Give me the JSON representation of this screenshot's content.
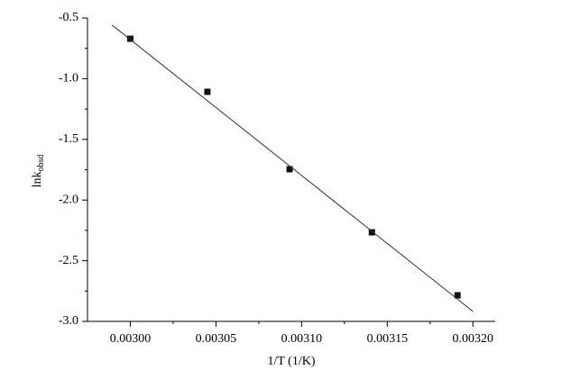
{
  "chart_data": {
    "type": "scatter",
    "xlabel": "1/T (1/K)",
    "ylabel": "lnk",
    "ylabel_subscript": "obsd",
    "xlim": [
      0.002975,
      0.003213
    ],
    "ylim": [
      -3.0,
      -0.5
    ],
    "xticks": [
      {
        "value": 0.003,
        "label": "0.00300"
      },
      {
        "value": 0.00305,
        "label": "0.00305"
      },
      {
        "value": 0.0031,
        "label": "0.00310"
      },
      {
        "value": 0.00315,
        "label": "0.00315"
      },
      {
        "value": 0.0032,
        "label": "0.00320"
      }
    ],
    "yticks": [
      -0.5,
      {
        "value": -1.0,
        "label": "-1.0"
      },
      -1.5,
      {
        "value": -2.0,
        "label": "-2.0"
      },
      -2.5,
      {
        "value": -3.0,
        "label": "-3.0"
      }
    ],
    "grid": false,
    "series": [
      {
        "color": "#111111",
        "marker": "square",
        "x": [
          0.003,
          0.003045,
          0.003093,
          0.003141,
          0.003191
        ],
        "values": [
          -0.671,
          -1.108,
          -1.746,
          -2.266,
          -2.785
        ]
      },
      {
        "color": "#333333",
        "marker": "line",
        "x": [
          0.0029894,
          0.0032
        ],
        "values": [
          -0.559,
          -2.918
        ]
      }
    ]
  }
}
